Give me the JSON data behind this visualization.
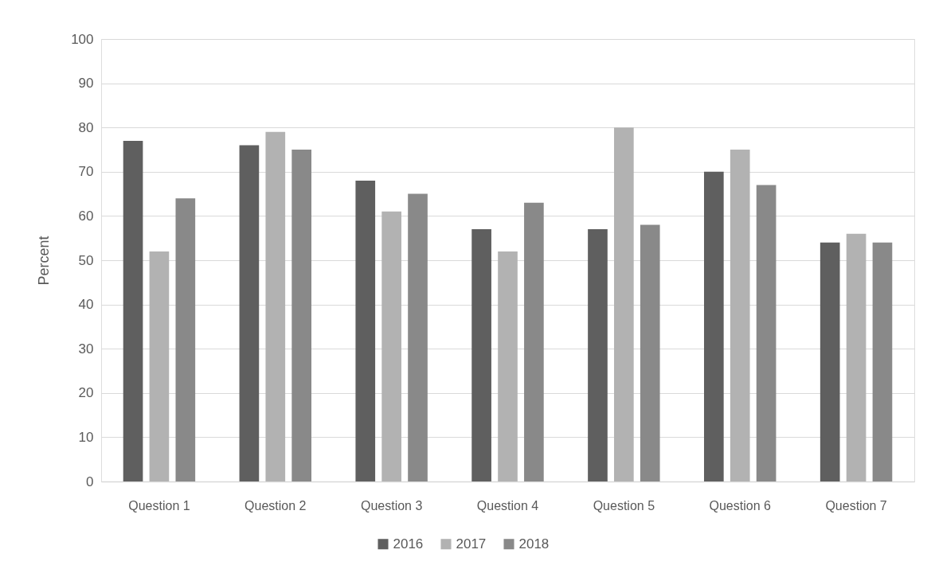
{
  "chart_data": {
    "type": "bar",
    "ylabel": "Percent",
    "categories": [
      "Question 1",
      "Question 2",
      "Question 3",
      "Question 4",
      "Question 5",
      "Question 6",
      "Question 7"
    ],
    "series": [
      {
        "name": "2016",
        "color": "#5f5f5f",
        "values": [
          77,
          76,
          68,
          57,
          57,
          70,
          54
        ]
      },
      {
        "name": "2017",
        "color": "#b2b2b2",
        "values": [
          52,
          79,
          61,
          52,
          80,
          75,
          56
        ]
      },
      {
        "name": "2018",
        "color": "#898989",
        "values": [
          64,
          75,
          65,
          63,
          58,
          67,
          54
        ]
      }
    ],
    "ylim": [
      0,
      100
    ],
    "yticks": [
      0,
      10,
      20,
      30,
      40,
      50,
      60,
      70,
      80,
      90,
      100
    ],
    "grid": "y",
    "legend": "bottom"
  }
}
